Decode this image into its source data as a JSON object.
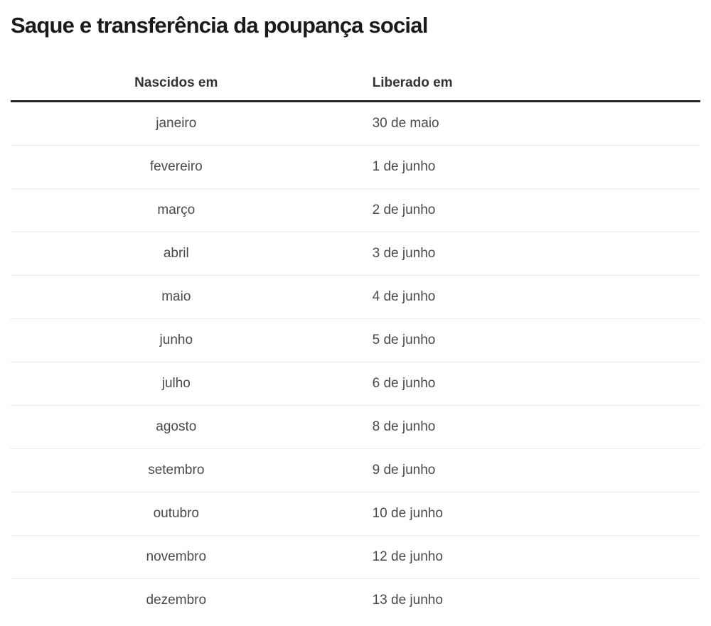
{
  "title": "Saque e transferência da poupança social",
  "colors": {
    "title_text": "#1a1a1a",
    "header_text": "#333333",
    "body_text": "#4a4a4a",
    "header_rule": "#262626",
    "row_separator": "#ebebeb",
    "background": "#ffffff"
  },
  "chart_data": {
    "type": "table",
    "title": "Saque e transferência da poupança social",
    "columns": [
      "Nascidos em",
      "Liberado em"
    ],
    "rows": [
      [
        "janeiro",
        "30 de maio"
      ],
      [
        "fevereiro",
        "1 de junho"
      ],
      [
        "março",
        "2 de junho"
      ],
      [
        "abril",
        "3 de junho"
      ],
      [
        "maio",
        "4 de junho"
      ],
      [
        "junho",
        "5 de junho"
      ],
      [
        "julho",
        "6 de junho"
      ],
      [
        "agosto",
        "8 de junho"
      ],
      [
        "setembro",
        "9 de junho"
      ],
      [
        "outubro",
        "10 de junho"
      ],
      [
        "novembro",
        "12 de junho"
      ],
      [
        "dezembro",
        "13 de junho"
      ]
    ],
    "layout": {
      "column_alignments": [
        "center",
        "left"
      ],
      "header_rule": "thick-dark",
      "row_separators": "light-gray"
    }
  }
}
